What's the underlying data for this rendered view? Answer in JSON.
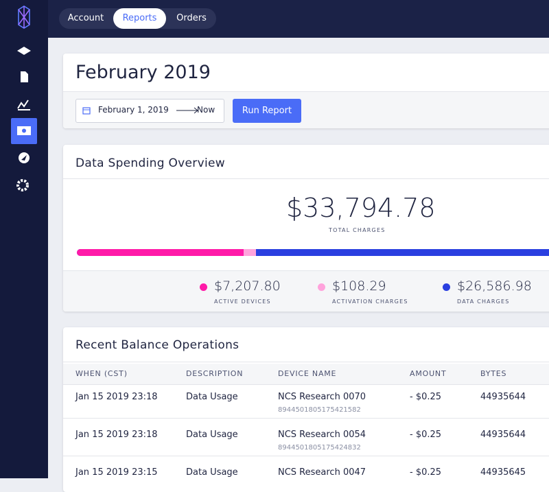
{
  "nav": {
    "tabs": [
      "Account",
      "Reports",
      "Orders"
    ]
  },
  "report": {
    "title": "February 2019",
    "date_start": "February 1, 2019",
    "date_end": "Now",
    "button": "Run Report"
  },
  "overview": {
    "title": "Data Spending Overview",
    "total": "$33,794.78",
    "total_label": "TOTAL CHARGES",
    "items": [
      {
        "value": "$7,207.80",
        "label": "ACTIVE DEVICES",
        "color": "#ff1aa8"
      },
      {
        "value": "$108.29",
        "label": "ACTIVATION CHARGES",
        "color": "#ffa3dc"
      },
      {
        "value": "$26,586.98",
        "label": "DATA CHARGES",
        "color": "#2a3fe0"
      }
    ]
  },
  "operations": {
    "title": "Recent Balance Operations",
    "columns": [
      "WHEN (CST)",
      "DESCRIPTION",
      "DEVICE NAME",
      "AMOUNT",
      "BYTES"
    ],
    "rows": [
      {
        "when": "Jan 15 2019 23:18",
        "description": "Data Usage",
        "device": "NCS Research 0070",
        "device_id": "8944501805175421582",
        "amount": "- $0.25",
        "bytes": "44935644"
      },
      {
        "when": "Jan 15 2019 23:18",
        "description": "Data Usage",
        "device": "NCS Research 0054",
        "device_id": "8944501805175424832",
        "amount": "- $0.25",
        "bytes": "44935644"
      },
      {
        "when": "Jan 15 2019 23:15",
        "description": "Data Usage",
        "device": "NCS Research 0047",
        "amount": "- $0.25",
        "bytes": "44935645"
      }
    ]
  }
}
